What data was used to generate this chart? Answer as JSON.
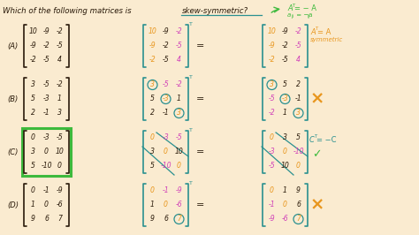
{
  "bg_color": "#2d2d2d",
  "title_color": "#e8e0d0",
  "underline_color": "#3ab0b0",
  "orange": "#e8a020",
  "green": "#40c840",
  "magenta": "#e040c0",
  "blue": "#3ab0b0",
  "dark_text": "#c8c0b0",
  "white_text": "#e8e0d0",
  "matrix_A": [
    [
      10,
      -9,
      -2
    ],
    [
      -9,
      -2,
      -5
    ],
    [
      -2,
      -5,
      4
    ]
  ],
  "matrix_B": [
    [
      3,
      -5,
      -2
    ],
    [
      5,
      -3,
      1
    ],
    [
      2,
      -1,
      3
    ]
  ],
  "matrix_C": [
    [
      0,
      -3,
      -5
    ],
    [
      3,
      0,
      10
    ],
    [
      5,
      -10,
      0
    ]
  ],
  "matrix_D": [
    [
      0,
      -1,
      -9
    ],
    [
      1,
      0,
      -6
    ],
    [
      9,
      6,
      7
    ]
  ]
}
